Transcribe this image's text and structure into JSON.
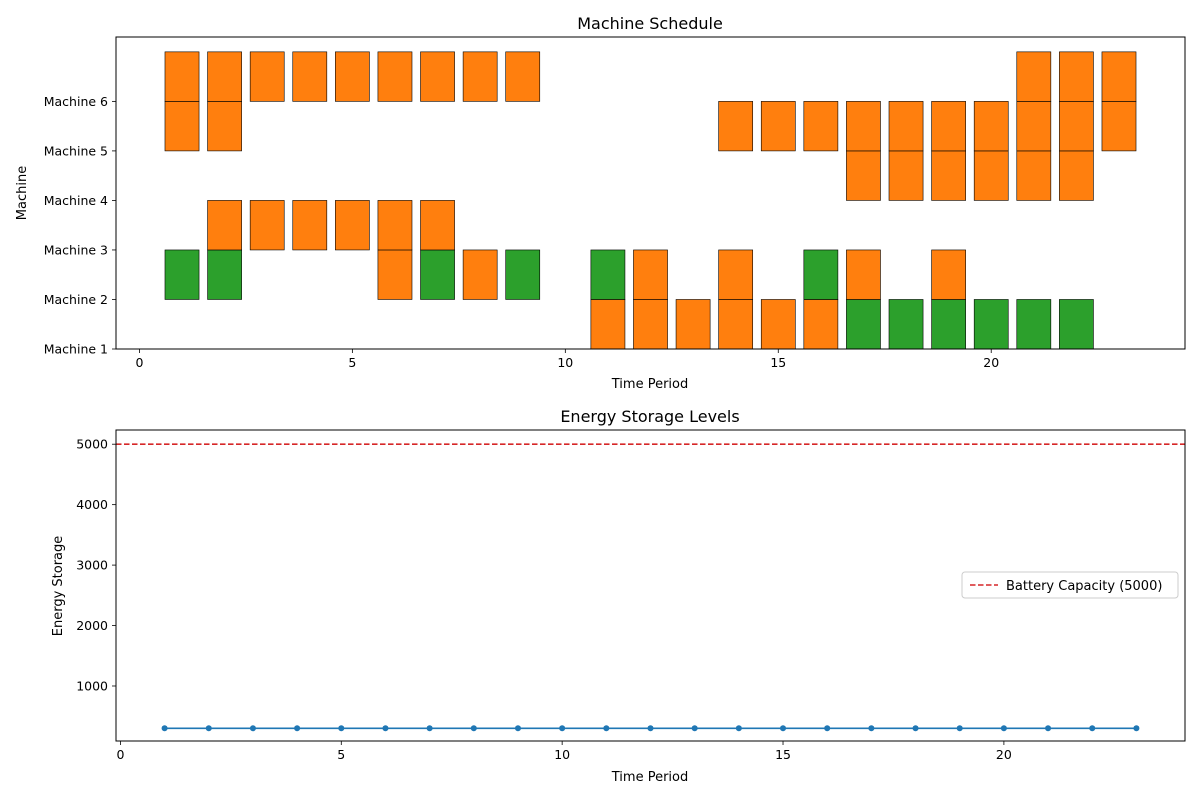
{
  "colors": {
    "production": "#ff7f0e",
    "other": "#2ca02c",
    "energy_line": "#1f77b4",
    "capacity_line": "#d62728",
    "block_edge": "#000000"
  },
  "chart_data": [
    {
      "type": "gantt",
      "title": "Machine Schedule",
      "xlabel": "Time Period",
      "ylabel": "Machine",
      "xlim": [
        -0.55,
        24.55
      ],
      "ylim": [
        1,
        7.3
      ],
      "xticks": [
        0,
        5,
        10,
        15,
        20
      ],
      "yticks": [
        {
          "value": 1,
          "label": "Machine 1"
        },
        {
          "value": 2,
          "label": "Machine 2"
        },
        {
          "value": 3,
          "label": "Machine 3"
        },
        {
          "value": 4,
          "label": "Machine 4"
        },
        {
          "value": 5,
          "label": "Machine 5"
        },
        {
          "value": 6,
          "label": "Machine 6"
        }
      ],
      "bar_width": 0.8,
      "blocks": [
        {
          "t": 1,
          "low": 2,
          "high": 3,
          "state": "other"
        },
        {
          "t": 1,
          "low": 5,
          "high": 6,
          "state": "production"
        },
        {
          "t": 1,
          "low": 6,
          "high": 7,
          "state": "production"
        },
        {
          "t": 2,
          "low": 2,
          "high": 3,
          "state": "other"
        },
        {
          "t": 2,
          "low": 3,
          "high": 4,
          "state": "production"
        },
        {
          "t": 2,
          "low": 5,
          "high": 6,
          "state": "production"
        },
        {
          "t": 2,
          "low": 6,
          "high": 7,
          "state": "production"
        },
        {
          "t": 3,
          "low": 3,
          "high": 4,
          "state": "production"
        },
        {
          "t": 3,
          "low": 6,
          "high": 7,
          "state": "production"
        },
        {
          "t": 4,
          "low": 3,
          "high": 4,
          "state": "production"
        },
        {
          "t": 4,
          "low": 6,
          "high": 7,
          "state": "production"
        },
        {
          "t": 5,
          "low": 3,
          "high": 4,
          "state": "production"
        },
        {
          "t": 5,
          "low": 6,
          "high": 7,
          "state": "production"
        },
        {
          "t": 6,
          "low": 2,
          "high": 3,
          "state": "production"
        },
        {
          "t": 6,
          "low": 3,
          "high": 4,
          "state": "production"
        },
        {
          "t": 6,
          "low": 6,
          "high": 7,
          "state": "production"
        },
        {
          "t": 7,
          "low": 2,
          "high": 3,
          "state": "other"
        },
        {
          "t": 7,
          "low": 3,
          "high": 4,
          "state": "production"
        },
        {
          "t": 7,
          "low": 6,
          "high": 7,
          "state": "production"
        },
        {
          "t": 8,
          "low": 2,
          "high": 3,
          "state": "production"
        },
        {
          "t": 8,
          "low": 6,
          "high": 7,
          "state": "production"
        },
        {
          "t": 9,
          "low": 2,
          "high": 3,
          "state": "other"
        },
        {
          "t": 9,
          "low": 6,
          "high": 7,
          "state": "production"
        },
        {
          "t": 11,
          "low": 1,
          "high": 2,
          "state": "production"
        },
        {
          "t": 11,
          "low": 2,
          "high": 3,
          "state": "other"
        },
        {
          "t": 12,
          "low": 1,
          "high": 2,
          "state": "production"
        },
        {
          "t": 12,
          "low": 2,
          "high": 3,
          "state": "production"
        },
        {
          "t": 13,
          "low": 1,
          "high": 2,
          "state": "production"
        },
        {
          "t": 14,
          "low": 1,
          "high": 2,
          "state": "production"
        },
        {
          "t": 14,
          "low": 2,
          "high": 3,
          "state": "production"
        },
        {
          "t": 14,
          "low": 5,
          "high": 6,
          "state": "production"
        },
        {
          "t": 15,
          "low": 1,
          "high": 2,
          "state": "production"
        },
        {
          "t": 15,
          "low": 5,
          "high": 6,
          "state": "production"
        },
        {
          "t": 16,
          "low": 1,
          "high": 2,
          "state": "production"
        },
        {
          "t": 16,
          "low": 2,
          "high": 3,
          "state": "other"
        },
        {
          "t": 16,
          "low": 5,
          "high": 6,
          "state": "production"
        },
        {
          "t": 17,
          "low": 1,
          "high": 2,
          "state": "other"
        },
        {
          "t": 17,
          "low": 2,
          "high": 3,
          "state": "production"
        },
        {
          "t": 17,
          "low": 4,
          "high": 5,
          "state": "production"
        },
        {
          "t": 17,
          "low": 5,
          "high": 6,
          "state": "production"
        },
        {
          "t": 18,
          "low": 1,
          "high": 2,
          "state": "other"
        },
        {
          "t": 18,
          "low": 4,
          "high": 5,
          "state": "production"
        },
        {
          "t": 18,
          "low": 5,
          "high": 6,
          "state": "production"
        },
        {
          "t": 19,
          "low": 1,
          "high": 2,
          "state": "other"
        },
        {
          "t": 19,
          "low": 2,
          "high": 3,
          "state": "production"
        },
        {
          "t": 19,
          "low": 4,
          "high": 5,
          "state": "production"
        },
        {
          "t": 19,
          "low": 5,
          "high": 6,
          "state": "production"
        },
        {
          "t": 20,
          "low": 1,
          "high": 2,
          "state": "other"
        },
        {
          "t": 20,
          "low": 4,
          "high": 5,
          "state": "production"
        },
        {
          "t": 20,
          "low": 5,
          "high": 6,
          "state": "production"
        },
        {
          "t": 21,
          "low": 1,
          "high": 2,
          "state": "other"
        },
        {
          "t": 21,
          "low": 4,
          "high": 5,
          "state": "production"
        },
        {
          "t": 21,
          "low": 5,
          "high": 6,
          "state": "production"
        },
        {
          "t": 21,
          "low": 6,
          "high": 7,
          "state": "production"
        },
        {
          "t": 22,
          "low": 1,
          "high": 2,
          "state": "other"
        },
        {
          "t": 22,
          "low": 4,
          "high": 5,
          "state": "production"
        },
        {
          "t": 22,
          "low": 5,
          "high": 6,
          "state": "production"
        },
        {
          "t": 22,
          "low": 6,
          "high": 7,
          "state": "production"
        },
        {
          "t": 23,
          "low": 5,
          "high": 6,
          "state": "production"
        },
        {
          "t": 23,
          "low": 6,
          "high": 7,
          "state": "production"
        }
      ]
    },
    {
      "type": "line",
      "title": "Energy Storage Levels",
      "xlabel": "Time Period",
      "ylabel": "Energy Storage",
      "xlim": [
        -0.1,
        24.1
      ],
      "ylim": [
        90,
        5235
      ],
      "xticks": [
        0,
        5,
        10,
        15,
        20
      ],
      "yticks": [
        1000,
        2000,
        3000,
        4000,
        5000
      ],
      "x": [
        1,
        2,
        3,
        4,
        5,
        6,
        7,
        8,
        9,
        10,
        11,
        12,
        13,
        14,
        15,
        16,
        17,
        18,
        19,
        20,
        21,
        22,
        23
      ],
      "y": [
        300,
        300,
        300,
        300,
        300,
        300,
        300,
        300,
        300,
        300,
        300,
        300,
        300,
        300,
        300,
        300,
        300,
        300,
        300,
        300,
        300,
        300,
        300
      ],
      "capacity": 5000,
      "legend": {
        "label": "Battery Capacity (5000)",
        "position": "center-right"
      }
    }
  ]
}
